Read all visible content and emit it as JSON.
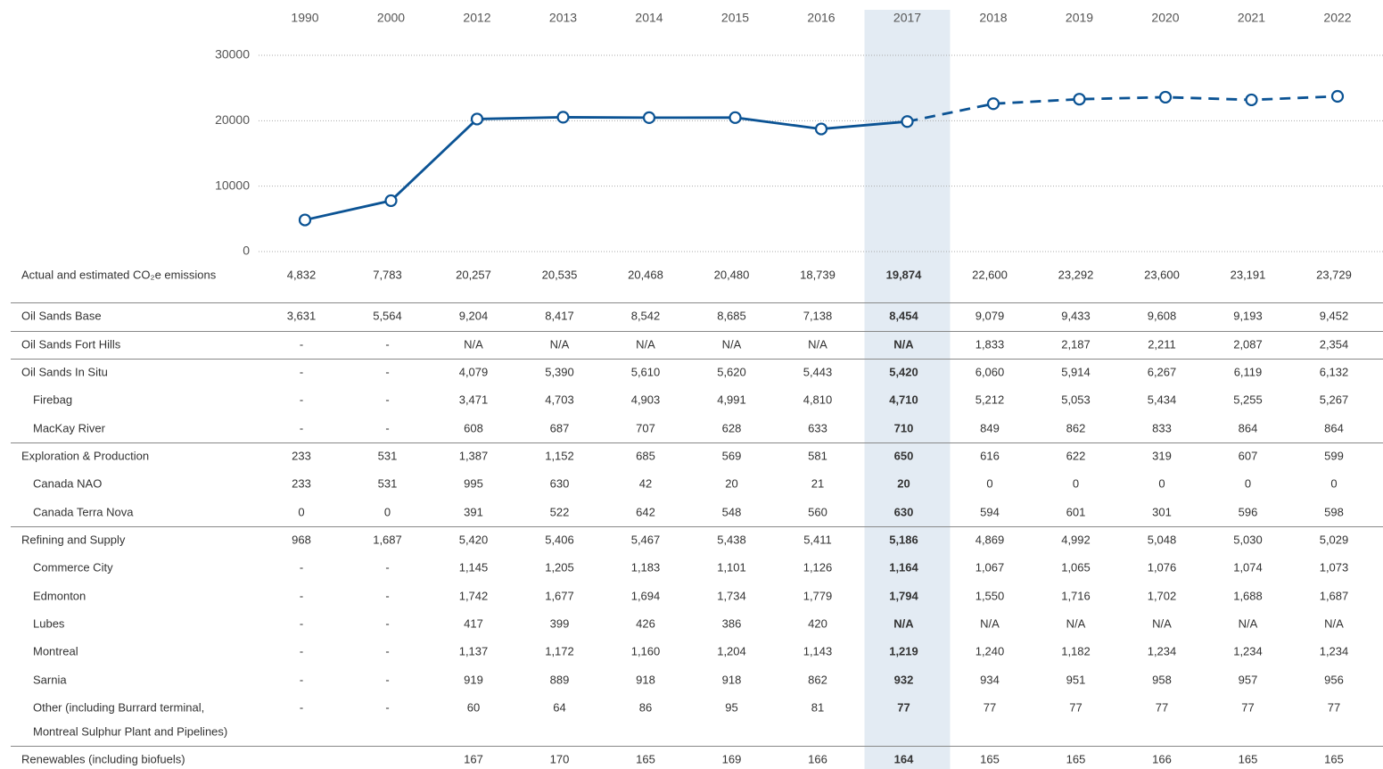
{
  "chart_data": {
    "type": "line",
    "categories": [
      "1990",
      "2000",
      "2012",
      "2013",
      "2014",
      "2015",
      "2016",
      "2017",
      "2018",
      "2019",
      "2020",
      "2021",
      "2022"
    ],
    "series_label": "Actual and estimated CO₂e emissions",
    "values": [
      4832,
      7783,
      20257,
      20535,
      20468,
      20480,
      18739,
      19874,
      22600,
      23292,
      23600,
      23191,
      23729
    ],
    "value_labels": [
      "4,832",
      "7,783",
      "20,257",
      "20,535",
      "20,468",
      "20,480",
      "18,739",
      "19,874",
      "22,600",
      "23,292",
      "23,600",
      "23,191",
      "23,729"
    ],
    "color": "#0b5394",
    "ylim": [
      0,
      30000
    ],
    "yticks": [
      0,
      10000,
      20000,
      30000
    ],
    "grid": true,
    "highlight": "2017",
    "dashed_from": "2017"
  },
  "table": {
    "rows": [
      {
        "label": "Oil Sands Base",
        "cells": [
          "3,631",
          "5,564",
          "9,204",
          "8,417",
          "8,542",
          "8,685",
          "7,138",
          "8,454",
          "9,079",
          "9,433",
          "9,608",
          "9,193",
          "9,452"
        ]
      },
      {
        "label": "Oil Sands Fort Hills",
        "cells": [
          "-",
          "-",
          "N/A",
          "N/A",
          "N/A",
          "N/A",
          "N/A",
          "N/A",
          "1,833",
          "2,187",
          "2,211",
          "2,087",
          "2,354"
        ]
      },
      {
        "label": "Oil Sands In Situ",
        "cells": [
          "-",
          "-",
          "4,079",
          "5,390",
          "5,610",
          "5,620",
          "5,443",
          "5,420",
          "6,060",
          "5,914",
          "6,267",
          "6,119",
          "6,132"
        ]
      },
      {
        "label": "Firebag",
        "indent": true,
        "cells": [
          "-",
          "-",
          "3,471",
          "4,703",
          "4,903",
          "4,991",
          "4,810",
          "4,710",
          "5,212",
          "5,053",
          "5,434",
          "5,255",
          "5,267"
        ]
      },
      {
        "label": "MacKay River",
        "indent": true,
        "cells": [
          "-",
          "-",
          "608",
          "687",
          "707",
          "628",
          "633",
          "710",
          "849",
          "862",
          "833",
          "864",
          "864"
        ]
      },
      {
        "label": "Exploration & Production",
        "cells": [
          "233",
          "531",
          "1,387",
          "1,152",
          "685",
          "569",
          "581",
          "650",
          "616",
          "622",
          "319",
          "607",
          "599"
        ]
      },
      {
        "label": "Canada NAO",
        "indent": true,
        "cells": [
          "233",
          "531",
          "995",
          "630",
          "42",
          "20",
          "21",
          "20",
          "0",
          "0",
          "0",
          "0",
          "0"
        ]
      },
      {
        "label": "Canada Terra Nova",
        "indent": true,
        "cells": [
          "0",
          "0",
          "391",
          "522",
          "642",
          "548",
          "560",
          "630",
          "594",
          "601",
          "301",
          "596",
          "598"
        ]
      },
      {
        "label": "Refining and Supply",
        "cells": [
          "968",
          "1,687",
          "5,420",
          "5,406",
          "5,467",
          "5,438",
          "5,411",
          "5,186",
          "4,869",
          "4,992",
          "5,048",
          "5,030",
          "5,029"
        ]
      },
      {
        "label": "Commerce City",
        "indent": true,
        "cells": [
          "-",
          "-",
          "1,145",
          "1,205",
          "1,183",
          "1,101",
          "1,126",
          "1,164",
          "1,067",
          "1,065",
          "1,076",
          "1,074",
          "1,073"
        ]
      },
      {
        "label": "Edmonton",
        "indent": true,
        "cells": [
          "-",
          "-",
          "1,742",
          "1,677",
          "1,694",
          "1,734",
          "1,779",
          "1,794",
          "1,550",
          "1,716",
          "1,702",
          "1,688",
          "1,687"
        ]
      },
      {
        "label": "Lubes",
        "indent": true,
        "cells": [
          "-",
          "-",
          "417",
          "399",
          "426",
          "386",
          "420",
          "N/A",
          "N/A",
          "N/A",
          "N/A",
          "N/A",
          "N/A"
        ]
      },
      {
        "label": "Montreal",
        "indent": true,
        "cells": [
          "-",
          "-",
          "1,137",
          "1,172",
          "1,160",
          "1,204",
          "1,143",
          "1,219",
          "1,240",
          "1,182",
          "1,234",
          "1,234",
          "1,234"
        ]
      },
      {
        "label": "Sarnia",
        "indent": true,
        "cells": [
          "-",
          "-",
          "919",
          "889",
          "918",
          "918",
          "862",
          "932",
          "934",
          "951",
          "958",
          "957",
          "956"
        ]
      },
      {
        "label": [
          "Other (including Burrard terminal,",
          "Montreal Sulphur Plant and Pipelines)"
        ],
        "indent": true,
        "cells": [
          "-",
          "-",
          "60",
          "64",
          "86",
          "95",
          "81",
          "77",
          "77",
          "77",
          "77",
          "77",
          "77"
        ]
      },
      {
        "label": "Renewables (including biofuels)",
        "cells": [
          null,
          null,
          "167",
          "170",
          "165",
          "169",
          "166",
          "164",
          "165",
          "165",
          "166",
          "165",
          "165"
        ]
      }
    ]
  }
}
